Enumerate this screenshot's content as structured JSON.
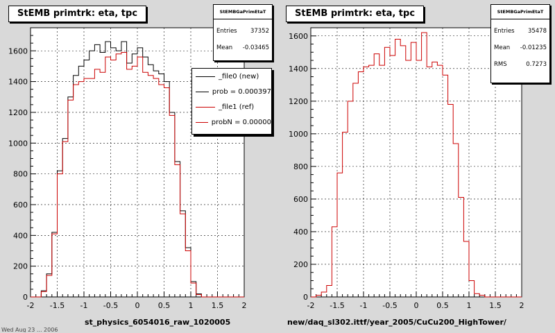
{
  "colors": {
    "ref": "#cc0000",
    "new": "#000000",
    "frame_bg": "#ffffff",
    "canvas_bg": "#d9d9d9"
  },
  "footer": {
    "timestamp": "Wed Aug 23 ... 2006"
  },
  "chart_data": [
    {
      "type": "histogram-step",
      "title": "StEMB primtrk: eta, tpc",
      "xlabel": "st_physics_6054016_raw_1020005",
      "ylabel": "",
      "xlim": [
        -2,
        2
      ],
      "ylim": [
        0,
        1750
      ],
      "xticks": [
        -2,
        -1.5,
        -1,
        -0.5,
        0,
        0.5,
        1,
        1.5,
        2
      ],
      "yticks": [
        0,
        200,
        400,
        600,
        800,
        1000,
        1200,
        1400,
        1600
      ],
      "grid": true,
      "bin_edges_start": -2,
      "bin_width": 0.1,
      "series": [
        {
          "name": "_file0 (new)",
          "color": "#000000",
          "values": [
            0,
            0,
            40,
            150,
            420,
            820,
            1030,
            1300,
            1440,
            1500,
            1540,
            1600,
            1640,
            1590,
            1660,
            1620,
            1600,
            1660,
            1520,
            1580,
            1620,
            1560,
            1510,
            1470,
            1450,
            1400,
            1200,
            880,
            560,
            320,
            100,
            20,
            0,
            0,
            0,
            0,
            0,
            0,
            0,
            0
          ]
        },
        {
          "name": "_file1 (ref)",
          "color": "#cc0000",
          "values": [
            0,
            0,
            35,
            140,
            410,
            800,
            1010,
            1280,
            1380,
            1400,
            1420,
            1420,
            1480,
            1460,
            1560,
            1540,
            1580,
            1590,
            1480,
            1500,
            1560,
            1460,
            1440,
            1420,
            1380,
            1360,
            1180,
            860,
            540,
            300,
            90,
            15,
            0,
            0,
            0,
            0,
            0,
            0,
            0,
            0
          ]
        }
      ],
      "legend": {
        "placement": "top-right",
        "entries": [
          "_file0 (new)",
          "prob = 0.000397",
          "_file1 (ref)",
          "probN = 0.00000"
        ]
      },
      "stats": {
        "name": "StEMBGaPrimEtaT",
        "entries_label": "Entries",
        "entries": "37352",
        "mean_label": "Mean",
        "mean": "-0.03465"
      }
    },
    {
      "type": "histogram-step",
      "title": "StEMB primtrk: eta, tpc",
      "xlabel": "new/daq_sl302.ittf/year_2005/CuCu200_HighTower/",
      "ylabel": "",
      "xlim": [
        -2,
        2
      ],
      "ylim": [
        0,
        1650
      ],
      "xticks": [
        -2,
        -1.5,
        -1,
        -0.5,
        0,
        0.5,
        1,
        1.5,
        2
      ],
      "yticks": [
        0,
        200,
        400,
        600,
        800,
        1000,
        1200,
        1400,
        1600
      ],
      "grid": true,
      "bin_edges_start": -2,
      "bin_width": 0.1,
      "series": [
        {
          "name": "",
          "color": "#cc0000",
          "values": [
            0,
            10,
            30,
            70,
            430,
            760,
            1010,
            1200,
            1310,
            1380,
            1410,
            1420,
            1490,
            1420,
            1530,
            1480,
            1580,
            1540,
            1450,
            1560,
            1450,
            1620,
            1410,
            1440,
            1420,
            1360,
            1180,
            940,
            610,
            340,
            100,
            20,
            10,
            0,
            0,
            0,
            0,
            0,
            0,
            0
          ]
        }
      ],
      "stats": {
        "name": "StEMBGaPrimEtaT",
        "entries_label": "Entries",
        "entries": "35478",
        "mean_label": "Mean",
        "mean": "-0.01235",
        "rms_label": "RMS",
        "rms": "0.7273"
      }
    }
  ]
}
